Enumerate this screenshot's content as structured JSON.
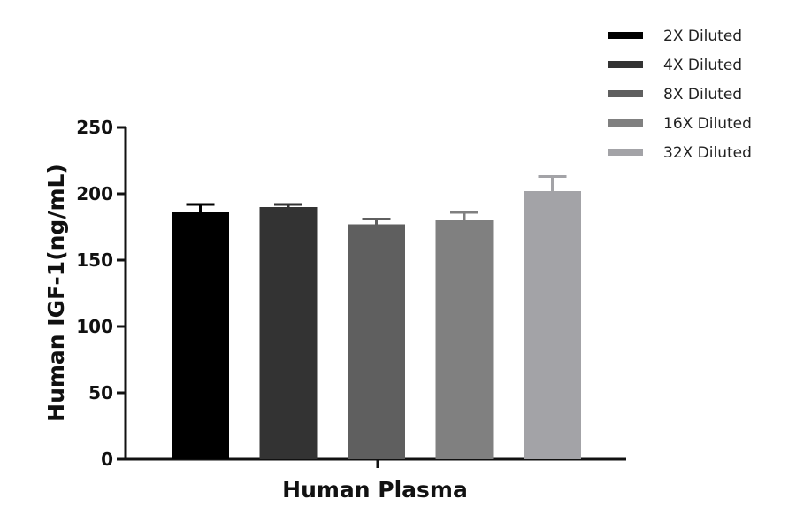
{
  "chart_data": {
    "type": "bar",
    "title": "",
    "xlabel": "Human Plasma",
    "ylabel": "Human IGF-1(ng/mL)",
    "categories": [
      "Human Plasma"
    ],
    "ylim": [
      0,
      250
    ],
    "yticks": [
      0,
      50,
      100,
      150,
      200,
      250
    ],
    "grid": false,
    "legend_position": "top-right",
    "series": [
      {
        "name": "2X Diluted",
        "values": [
          186
        ],
        "error": [
          6
        ],
        "color": "#000000"
      },
      {
        "name": "4X Diluted",
        "values": [
          190
        ],
        "error": [
          2
        ],
        "color": "#333333"
      },
      {
        "name": "8X Diluted",
        "values": [
          177
        ],
        "error": [
          4
        ],
        "color": "#5f5f5f"
      },
      {
        "name": "16X Diluted",
        "values": [
          180
        ],
        "error": [
          6
        ],
        "color": "#808080"
      },
      {
        "name": "32X Diluted",
        "values": [
          202
        ],
        "error": [
          11
        ],
        "color": "#a3a3a7"
      }
    ]
  }
}
